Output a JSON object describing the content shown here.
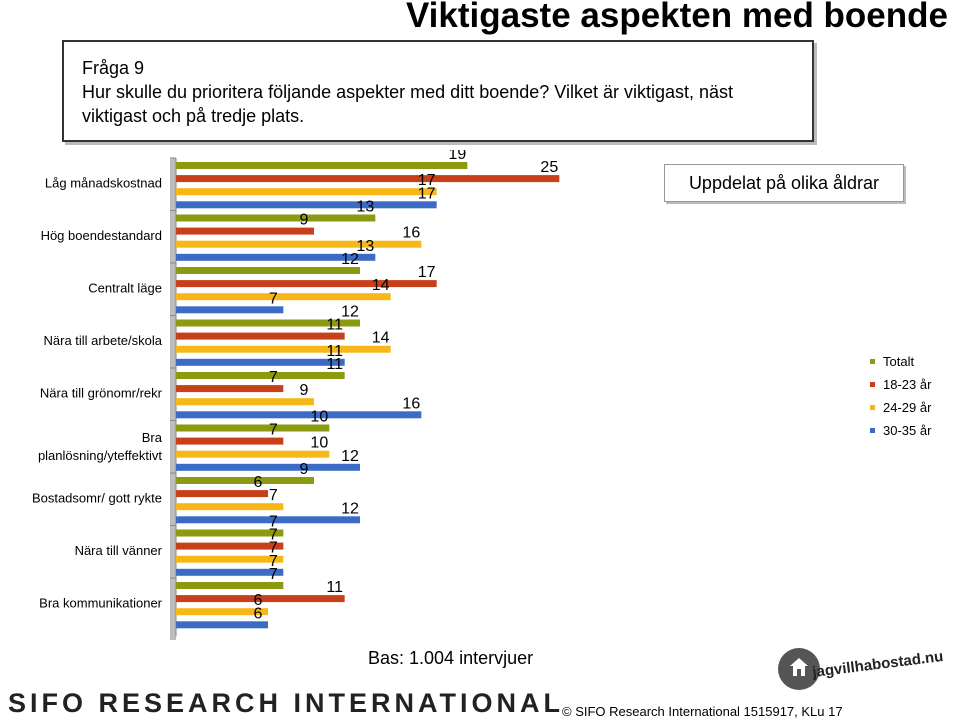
{
  "page": {
    "title": "Viktigaste aspekten med boende",
    "question_number": "Fråga 9",
    "question_text": "Hur skulle du prioritera följande aspekter med ditt boende? Vilket är viktigast, näst viktigast och på tredje plats.",
    "subtitle": "Uppdelat på olika åldrar",
    "base": "Bas: 1.004 intervjuer",
    "logo_sifo": "SIFO RESEARCH INTERNATIONAL",
    "logo_jag": "jagvillhabostad.nu",
    "copyright": "© SIFO Research International 1515917, KLu 17"
  },
  "chart_data": {
    "type": "bar",
    "orientation": "horizontal",
    "categories": [
      "Låg månadskostnad",
      "Hög boendestandard",
      "Centralt läge",
      "Nära till arbete/skola",
      "Nära till grönomr/rekr",
      "Bra planlösning/yteffektivt",
      "Bostadsomr/ gott rykte",
      "Nära till vänner",
      "Bra kommunikationer"
    ],
    "series": [
      {
        "name": "Totalt",
        "color": "#8b9a10",
        "values": [
          19,
          13,
          12,
          12,
          11,
          10,
          9,
          7,
          7
        ]
      },
      {
        "name": "18-23 år",
        "color": "#c8401a",
        "values": [
          25,
          9,
          17,
          11,
          7,
          7,
          6,
          7,
          11
        ]
      },
      {
        "name": "24-29 år",
        "color": "#f7b817",
        "values": [
          17,
          16,
          14,
          14,
          9,
          10,
          7,
          7,
          6
        ]
      },
      {
        "name": "30-35 år",
        "color": "#3b6bc4",
        "values": [
          17,
          13,
          7,
          11,
          16,
          12,
          12,
          7,
          6
        ]
      }
    ],
    "xlim": [
      0,
      30
    ],
    "legend_position": "right"
  }
}
